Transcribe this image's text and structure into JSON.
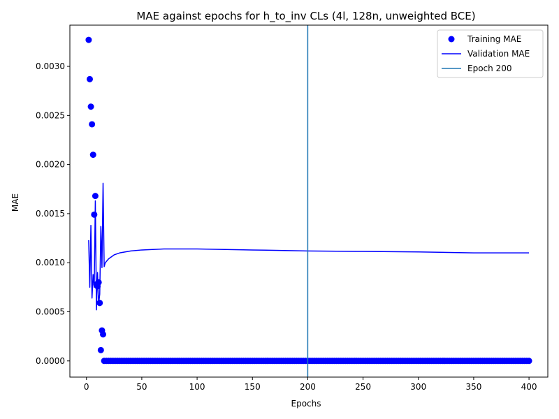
{
  "chart_data": {
    "type": "scatter",
    "title": "MAE against epochs for h_to_inv CLs (4l, 128n, unweighted BCE)",
    "xlabel": "Epochs",
    "ylabel": "MAE",
    "xlim": [
      -15,
      417
    ],
    "ylim": [
      -0.000165,
      0.00342
    ],
    "x_ticks": [
      0,
      50,
      100,
      150,
      200,
      250,
      300,
      350,
      400
    ],
    "y_ticks": [
      0.0,
      0.0005,
      0.001,
      0.0015,
      0.002,
      0.0025,
      0.003
    ],
    "y_tick_labels": [
      "0.0000",
      "0.0005",
      "0.0010",
      "0.0015",
      "0.0020",
      "0.0025",
      "0.0030"
    ],
    "grid": false,
    "legend_position": "top-right",
    "series": [
      {
        "name": "Training MAE",
        "kind": "scatter",
        "color": "#0000ff",
        "points": [
          [
            2,
            0.00327
          ],
          [
            3,
            0.00287
          ],
          [
            4,
            0.00259
          ],
          [
            5,
            0.00241
          ],
          [
            6,
            0.0021
          ],
          [
            7,
            0.00149
          ],
          [
            8,
            0.00168
          ],
          [
            9,
            0.00078
          ],
          [
            10,
            0.00076
          ],
          [
            11,
            0.0008
          ],
          [
            12,
            0.00059
          ],
          [
            13,
            0.00011
          ],
          [
            14,
            0.00031
          ],
          [
            15,
            0.00027
          ]
        ],
        "tail": {
          "x_start": 16,
          "x_end": 401,
          "step": 2,
          "value": 0.0
        }
      },
      {
        "name": "Validation MAE",
        "kind": "line",
        "color": "#0000ff",
        "points": [
          [
            2,
            0.00123
          ],
          [
            3,
            0.00075
          ],
          [
            4,
            0.00138
          ],
          [
            5,
            0.00064
          ],
          [
            6,
            0.00088
          ],
          [
            7,
            0.00075
          ],
          [
            8,
            0.00163
          ],
          [
            9,
            0.00052
          ],
          [
            10,
            0.0009
          ],
          [
            11,
            0.00058
          ],
          [
            12,
            0.00068
          ],
          [
            13,
            0.00137
          ],
          [
            14,
            0.00095
          ],
          [
            15,
            0.00181
          ],
          [
            16,
            0.00096
          ],
          [
            17,
            0.001
          ],
          [
            20,
            0.00104
          ],
          [
            25,
            0.00108
          ],
          [
            30,
            0.0011
          ],
          [
            40,
            0.00112
          ],
          [
            50,
            0.00113
          ],
          [
            60,
            0.001135
          ],
          [
            70,
            0.00114
          ],
          [
            100,
            0.00114
          ],
          [
            150,
            0.00113
          ],
          [
            200,
            0.00112
          ],
          [
            250,
            0.001115
          ],
          [
            300,
            0.00111
          ],
          [
            350,
            0.0011
          ],
          [
            400,
            0.0011
          ]
        ]
      },
      {
        "name": "Epoch 200",
        "kind": "vline",
        "color": "#1f77b4",
        "x": 200
      }
    ]
  }
}
